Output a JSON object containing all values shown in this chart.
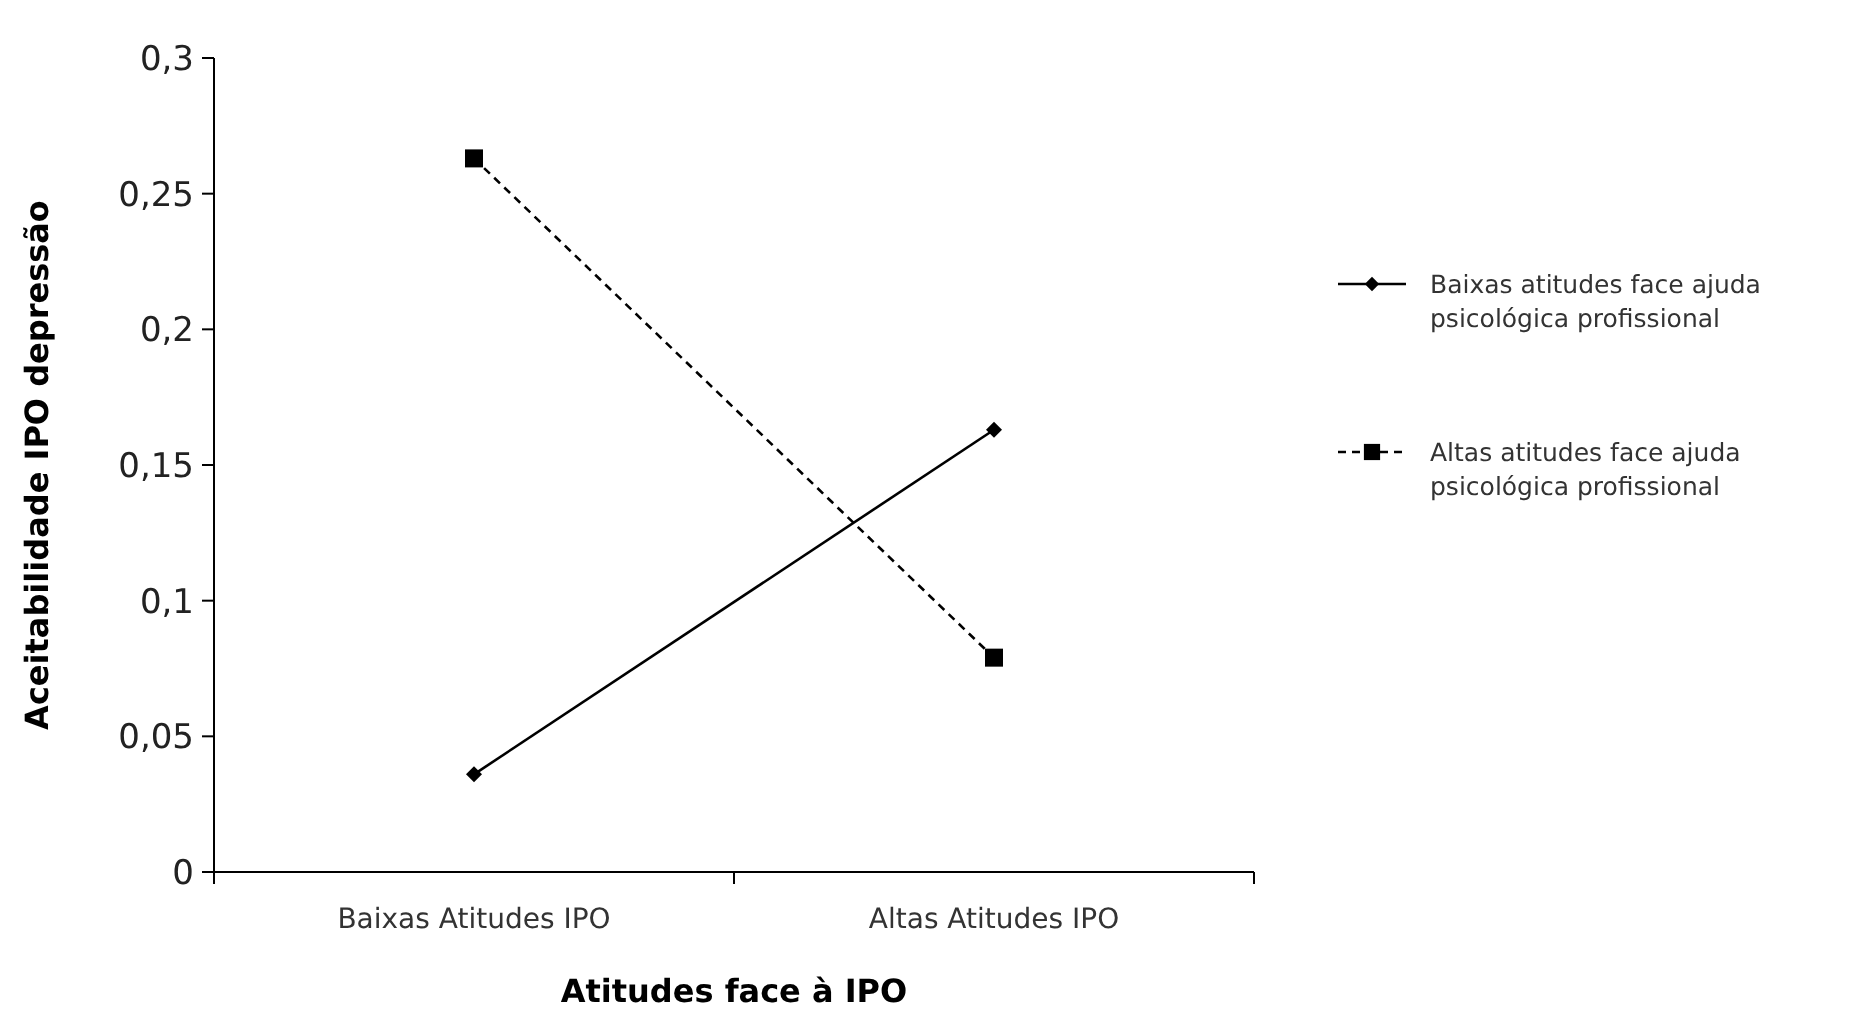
{
  "chart_data": {
    "type": "line",
    "xlabel": "Atitudes face à IPO",
    "ylabel": "Aceitabilidade IPO depressão",
    "categories": [
      "Baixas Atitudes IPO",
      "Altas Atitudes IPO"
    ],
    "series": [
      {
        "name": "Baixas atitudes face ajuda psicológica profissional",
        "color": "#000000",
        "values": [
          0.036,
          0.163
        ],
        "marker": "diamond",
        "line_style": "solid"
      },
      {
        "name": "Altas atitudes face ajuda psicológica profissional",
        "color": "#000000",
        "values": [
          0.263,
          0.079
        ],
        "marker": "square",
        "line_style": "dashed"
      }
    ],
    "ylim": [
      0,
      0.3
    ],
    "yticks": [
      {
        "value": 0,
        "label": "0"
      },
      {
        "value": 0.05,
        "label": "0,05"
      },
      {
        "value": 0.1,
        "label": "0,1"
      },
      {
        "value": 0.15,
        "label": "0,15"
      },
      {
        "value": 0.2,
        "label": "0,2"
      },
      {
        "value": 0.25,
        "label": "0,25"
      },
      {
        "value": 0.3,
        "label": "0,3"
      }
    ],
    "grid": false,
    "legend": "right"
  }
}
